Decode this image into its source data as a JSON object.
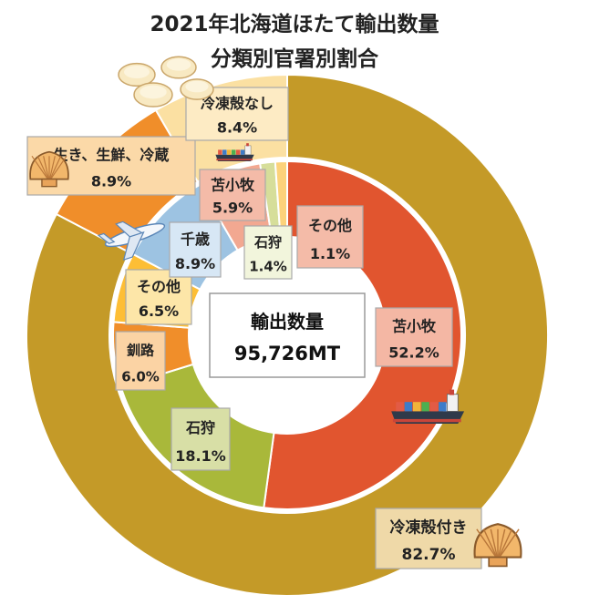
{
  "chart_data": {
    "type": "pie",
    "subtype": "nested-donut",
    "title_line1": "2021年北海道ほたて輸出数量",
    "title_line2": "分類別官署別割合",
    "center_label": "輸出数量",
    "center_value": "95,726MT",
    "outer_ring": [
      {
        "name": "冷凍殻付き",
        "value": 82.7,
        "label": "82.7%",
        "color": "#C49A28",
        "box": "#EFD9A8"
      },
      {
        "name": "生き、生鮮、冷蔵",
        "value": 8.9,
        "label": "8.9%",
        "color": "#F08E2A",
        "box": "#FBD9A8"
      },
      {
        "name": "冷凍殻なし",
        "value": 8.4,
        "label": "8.4%",
        "color": "#FBE0A2",
        "box": "#FDEBC4"
      }
    ],
    "inner_ring": [
      {
        "name": "苫小牧",
        "value": 52.2,
        "label": "52.2%",
        "color": "#E1552F",
        "box": "#F4B7A4",
        "parent": "冷凍殻付き"
      },
      {
        "name": "石狩",
        "value": 18.1,
        "label": "18.1%",
        "color": "#A9B83A",
        "box": "#D8DFA6",
        "parent": "冷凍殻付き"
      },
      {
        "name": "釧路",
        "value": 6.0,
        "label": "6.0%",
        "color": "#F08E2A",
        "box": "#FBD3A4",
        "parent": "冷凍殻付き"
      },
      {
        "name": "その他",
        "value": 6.5,
        "label": "6.5%",
        "color": "#FDBE35",
        "box": "#FDE6A8",
        "parent": "冷凍殻付き"
      },
      {
        "name": "千歳",
        "value": 8.9,
        "label": "8.9%",
        "color": "#9DC3E2",
        "box": "#D7E7F5",
        "parent": "生き、生鮮、冷蔵"
      },
      {
        "name": "苫小牧",
        "value": 5.9,
        "label": "5.9%",
        "color": "#F2A891",
        "box": "#F4BBA8",
        "parent": "冷凍殻なし"
      },
      {
        "name": "石狩",
        "value": 1.4,
        "label": "1.4%",
        "color": "#D6DE9A",
        "box": "#F2F5DC",
        "parent": "冷凍殻なし"
      },
      {
        "name": "その他",
        "value": 1.1,
        "label": "1.1%",
        "color": "#FCD27A",
        "box": "#F4BBA8",
        "parent": "冷凍殻なし"
      }
    ],
    "icons": [
      "scallops-pile-icon",
      "scallop-shell-icon",
      "cargo-ship-icon",
      "airplane-icon"
    ]
  }
}
